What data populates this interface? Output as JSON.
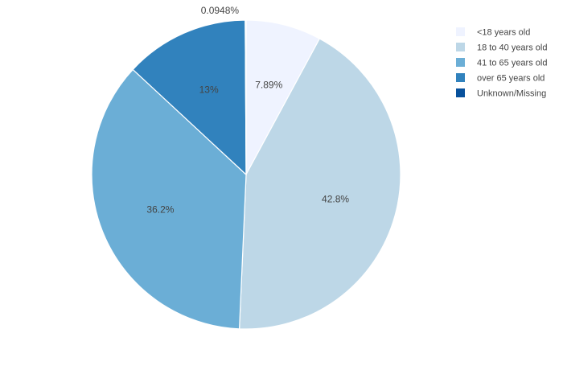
{
  "chart_data": {
    "type": "pie",
    "title": "",
    "categories": [
      "<18 years old",
      "18 to 40 years old",
      "41 to 65 years old",
      "over 65 years old",
      "Unknown/Missing"
    ],
    "values": [
      7.89,
      42.8,
      36.2,
      13,
      0.0948
    ],
    "labels": [
      "7.89%",
      "42.8%",
      "36.2%",
      "13%",
      "0.0948%"
    ],
    "colors": [
      "#eff3ff",
      "#bdd7e7",
      "#6baed6",
      "#3182bd",
      "#08519c"
    ],
    "legend": {
      "position": "top-right",
      "entries": [
        "<18 years old",
        "18 to 40 years old",
        "41 to 65 years old",
        "over 65 years old",
        "Unknown/Missing"
      ]
    }
  }
}
